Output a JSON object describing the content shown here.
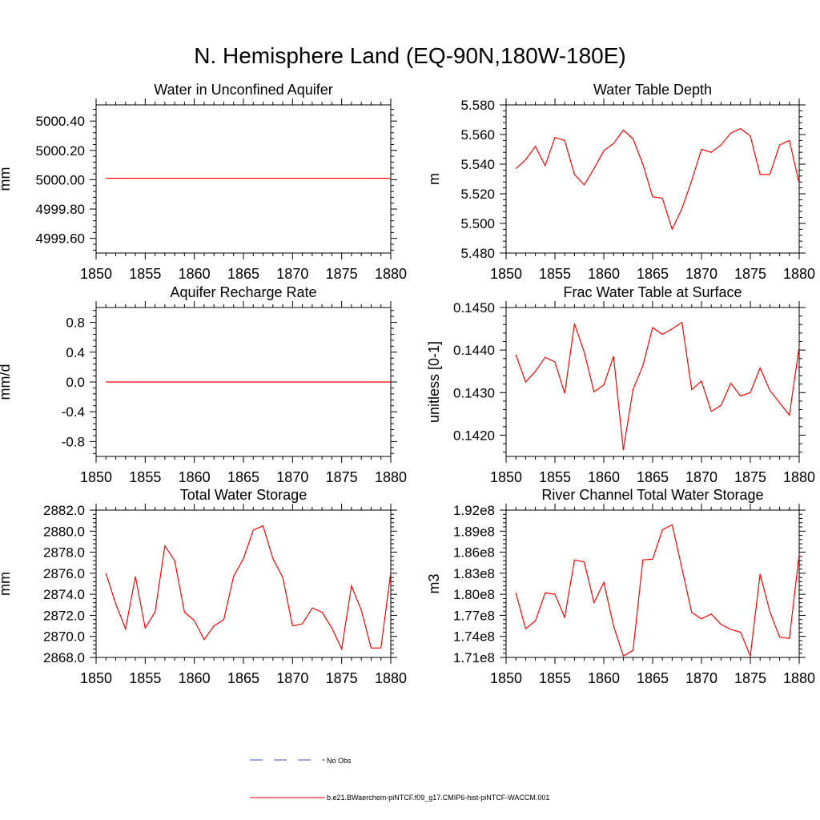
{
  "title": "N. Hemisphere Land (EQ-90N,180W-180E)",
  "colors": {
    "series": "#ff0000",
    "noobs": "#4d4dbf",
    "axis": "#000000"
  },
  "legend": {
    "entries": [
      {
        "label": "No Obs",
        "style": "dashed",
        "color": "#4d4dbf"
      },
      {
        "label": "b.e21.BWaerchem-piNTCF.f09_g17.CMIP6-hist-piNTCF-WACCM.001",
        "style": "solid",
        "color": "#ff0000"
      }
    ]
  },
  "chart_data": [
    {
      "type": "line",
      "title": "Water in Unconfined Aquifer",
      "ylabel": "mm",
      "xlim": [
        1850,
        1880
      ],
      "ylim": [
        4999.5,
        5000.51
      ],
      "xticks": [
        1850,
        1855,
        1860,
        1865,
        1870,
        1875,
        1880
      ],
      "yticks": [
        4999.6,
        4999.8,
        5000.0,
        5000.2,
        5000.4
      ],
      "yticklabels": [
        "4999.60",
        "4999.80",
        "5000.00",
        "5000.20",
        "5000.40"
      ],
      "series": [
        {
          "x": [
            1851,
            1880
          ],
          "y": [
            5000.01,
            5000.01
          ]
        }
      ]
    },
    {
      "type": "line",
      "title": "Water Table Depth",
      "ylabel": "m",
      "xlim": [
        1850,
        1880
      ],
      "ylim": [
        5.48,
        5.58
      ],
      "xticks": [
        1850,
        1855,
        1860,
        1865,
        1870,
        1875,
        1880
      ],
      "yticks": [
        5.48,
        5.5,
        5.52,
        5.54,
        5.56,
        5.58
      ],
      "yticklabels": [
        "5.480",
        "5.500",
        "5.520",
        "5.540",
        "5.560",
        "5.580"
      ],
      "series": [
        {
          "x": [
            1851,
            1852,
            1853,
            1854,
            1855,
            1856,
            1857,
            1858,
            1859,
            1860,
            1861,
            1862,
            1863,
            1864,
            1865,
            1866,
            1867,
            1868,
            1869,
            1870,
            1871,
            1872,
            1873,
            1874,
            1875,
            1876,
            1877,
            1878,
            1879,
            1880
          ],
          "y": [
            5.537,
            5.543,
            5.552,
            5.539,
            5.558,
            5.556,
            5.533,
            5.526,
            5.537,
            5.549,
            5.554,
            5.563,
            5.557,
            5.54,
            5.518,
            5.517,
            5.496,
            5.51,
            5.529,
            5.55,
            5.548,
            5.553,
            5.561,
            5.564,
            5.559,
            5.533,
            5.533,
            5.553,
            5.556,
            5.527
          ]
        }
      ]
    },
    {
      "type": "line",
      "title": "Aquifer Recharge Rate",
      "ylabel": "mm/d",
      "xlim": [
        1850,
        1880
      ],
      "ylim": [
        -1.0,
        1.0
      ],
      "xticks": [
        1850,
        1855,
        1860,
        1865,
        1870,
        1875,
        1880
      ],
      "yticks": [
        -0.8,
        -0.4,
        0.0,
        0.4,
        0.8
      ],
      "yticklabels": [
        "-0.8",
        "-0.4",
        "0.0",
        "0.4",
        "0.8"
      ],
      "series": [
        {
          "x": [
            1851,
            1880
          ],
          "y": [
            0.0,
            0.0
          ]
        }
      ]
    },
    {
      "type": "line",
      "title": "Frac Water Table at Surface",
      "ylabel": "unitless [0-1]",
      "xlim": [
        1850,
        1880
      ],
      "ylim": [
        0.1415,
        0.145
      ],
      "xticks": [
        1850,
        1855,
        1860,
        1865,
        1870,
        1875,
        1880
      ],
      "yticks": [
        0.142,
        0.143,
        0.144,
        0.145
      ],
      "yticklabels": [
        "0.1420",
        "0.1430",
        "0.1440",
        "0.1450"
      ],
      "series": [
        {
          "x": [
            1851,
            1852,
            1853,
            1854,
            1855,
            1856,
            1857,
            1858,
            1859,
            1860,
            1861,
            1862,
            1863,
            1864,
            1865,
            1866,
            1867,
            1868,
            1869,
            1870,
            1871,
            1872,
            1873,
            1874,
            1875,
            1876,
            1877,
            1878,
            1879,
            1880
          ],
          "y": [
            0.14389,
            0.14325,
            0.1435,
            0.14383,
            0.14372,
            0.14298,
            0.14462,
            0.14395,
            0.14302,
            0.14318,
            0.14385,
            0.14165,
            0.14308,
            0.14363,
            0.14453,
            0.14437,
            0.1445,
            0.14465,
            0.14307,
            0.14327,
            0.14256,
            0.1427,
            0.14322,
            0.14292,
            0.143,
            0.14358,
            0.14305,
            0.14276,
            0.14247,
            0.14408
          ]
        }
      ]
    },
    {
      "type": "line",
      "title": "Total Water Storage",
      "ylabel": "mm",
      "xlim": [
        1850,
        1880
      ],
      "ylim": [
        2868.0,
        2882.0
      ],
      "xticks": [
        1850,
        1855,
        1860,
        1865,
        1870,
        1875,
        1880
      ],
      "yticks": [
        2868,
        2870,
        2872,
        2874,
        2876,
        2878,
        2880,
        2882
      ],
      "yticklabels": [
        "2868.0",
        "2870.0",
        "2872.0",
        "2874.0",
        "2876.0",
        "2878.0",
        "2880.0",
        "2882.0"
      ],
      "series": [
        {
          "x": [
            1851,
            1852,
            1853,
            1854,
            1855,
            1856,
            1857,
            1858,
            1859,
            1860,
            1861,
            1862,
            1863,
            1864,
            1865,
            1866,
            1867,
            1868,
            1869,
            1870,
            1871,
            1872,
            1873,
            1874,
            1875,
            1876,
            1877,
            1878,
            1879,
            1880
          ],
          "y": [
            2876.0,
            2873.1,
            2870.7,
            2875.7,
            2870.8,
            2872.3,
            2878.6,
            2877.2,
            2872.3,
            2871.5,
            2869.7,
            2871.0,
            2871.6,
            2875.7,
            2877.4,
            2880.1,
            2880.5,
            2877.4,
            2875.6,
            2871.0,
            2871.2,
            2872.7,
            2872.3,
            2870.8,
            2868.8,
            2874.8,
            2872.5,
            2868.9,
            2868.9,
            2876.1
          ]
        }
      ]
    },
    {
      "type": "line",
      "title": "River Channel Total Water Storage",
      "ylabel": "m3",
      "xlim": [
        1850,
        1880
      ],
      "ylim": [
        171000000.0,
        192000000.0
      ],
      "xticks": [
        1850,
        1855,
        1860,
        1865,
        1870,
        1875,
        1880
      ],
      "yticks": [
        171000000.0,
        174000000.0,
        177000000.0,
        180000000.0,
        183000000.0,
        186000000.0,
        189000000.0,
        192000000.0
      ],
      "yticklabels": [
        "1.71e8",
        "1.74e8",
        "1.77e8",
        "1.80e8",
        "1.83e8",
        "1.86e8",
        "1.89e8",
        "1.92e8"
      ],
      "series": [
        {
          "x": [
            1851,
            1852,
            1853,
            1854,
            1855,
            1856,
            1857,
            1858,
            1859,
            1860,
            1861,
            1862,
            1863,
            1864,
            1865,
            1866,
            1867,
            1868,
            1869,
            1870,
            1871,
            1872,
            1873,
            1874,
            1875,
            1876,
            1877,
            1878,
            1879,
            1880
          ],
          "y": [
            180200000.0,
            175100000.0,
            176200000.0,
            180200000.0,
            180000000.0,
            176700000.0,
            184900000.0,
            184600000.0,
            178800000.0,
            181700000.0,
            175500000.0,
            171200000.0,
            172000000.0,
            184900000.0,
            185000000.0,
            189200000.0,
            189900000.0,
            183700000.0,
            177400000.0,
            176500000.0,
            177200000.0,
            175700000.0,
            175000000.0,
            174600000.0,
            171200000.0,
            182900000.0,
            177500000.0,
            173900000.0,
            173700000.0,
            185700000.0
          ]
        }
      ]
    }
  ]
}
